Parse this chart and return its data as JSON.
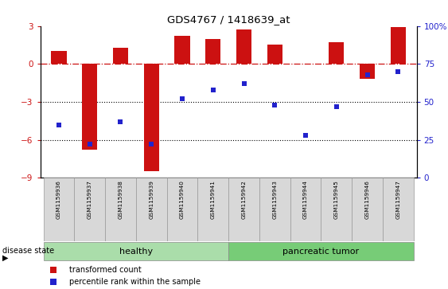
{
  "title": "GDS4767 / 1418639_at",
  "samples": [
    "GSM1159936",
    "GSM1159937",
    "GSM1159938",
    "GSM1159939",
    "GSM1159940",
    "GSM1159941",
    "GSM1159942",
    "GSM1159943",
    "GSM1159944",
    "GSM1159945",
    "GSM1159946",
    "GSM1159947"
  ],
  "transformed_count": [
    1.0,
    -6.8,
    1.3,
    -8.5,
    2.2,
    2.0,
    2.7,
    1.5,
    0.05,
    1.7,
    -1.2,
    2.9
  ],
  "percentile_rank": [
    35,
    22,
    37,
    22,
    52,
    58,
    62,
    48,
    28,
    47,
    68,
    70
  ],
  "bar_color": "#cc1111",
  "scatter_color": "#2222cc",
  "ylim_left": [
    -9,
    3
  ],
  "ylim_right": [
    0,
    100
  ],
  "yticks_left": [
    -9,
    -6,
    -3,
    0,
    3
  ],
  "yticks_right": [
    0,
    25,
    50,
    75,
    100
  ],
  "ytick_labels_right": [
    "0",
    "25",
    "50",
    "75",
    "100%"
  ],
  "healthy_color": "#aaddaa",
  "tumor_color": "#77cc77",
  "dotted_lines": [
    -3,
    -6
  ],
  "disease_label": "disease state",
  "legend_items": [
    {
      "label": "transformed count",
      "color": "#cc1111"
    },
    {
      "label": "percentile rank within the sample",
      "color": "#2222cc"
    }
  ],
  "fig_width": 5.63,
  "fig_height": 3.63,
  "dpi": 100
}
